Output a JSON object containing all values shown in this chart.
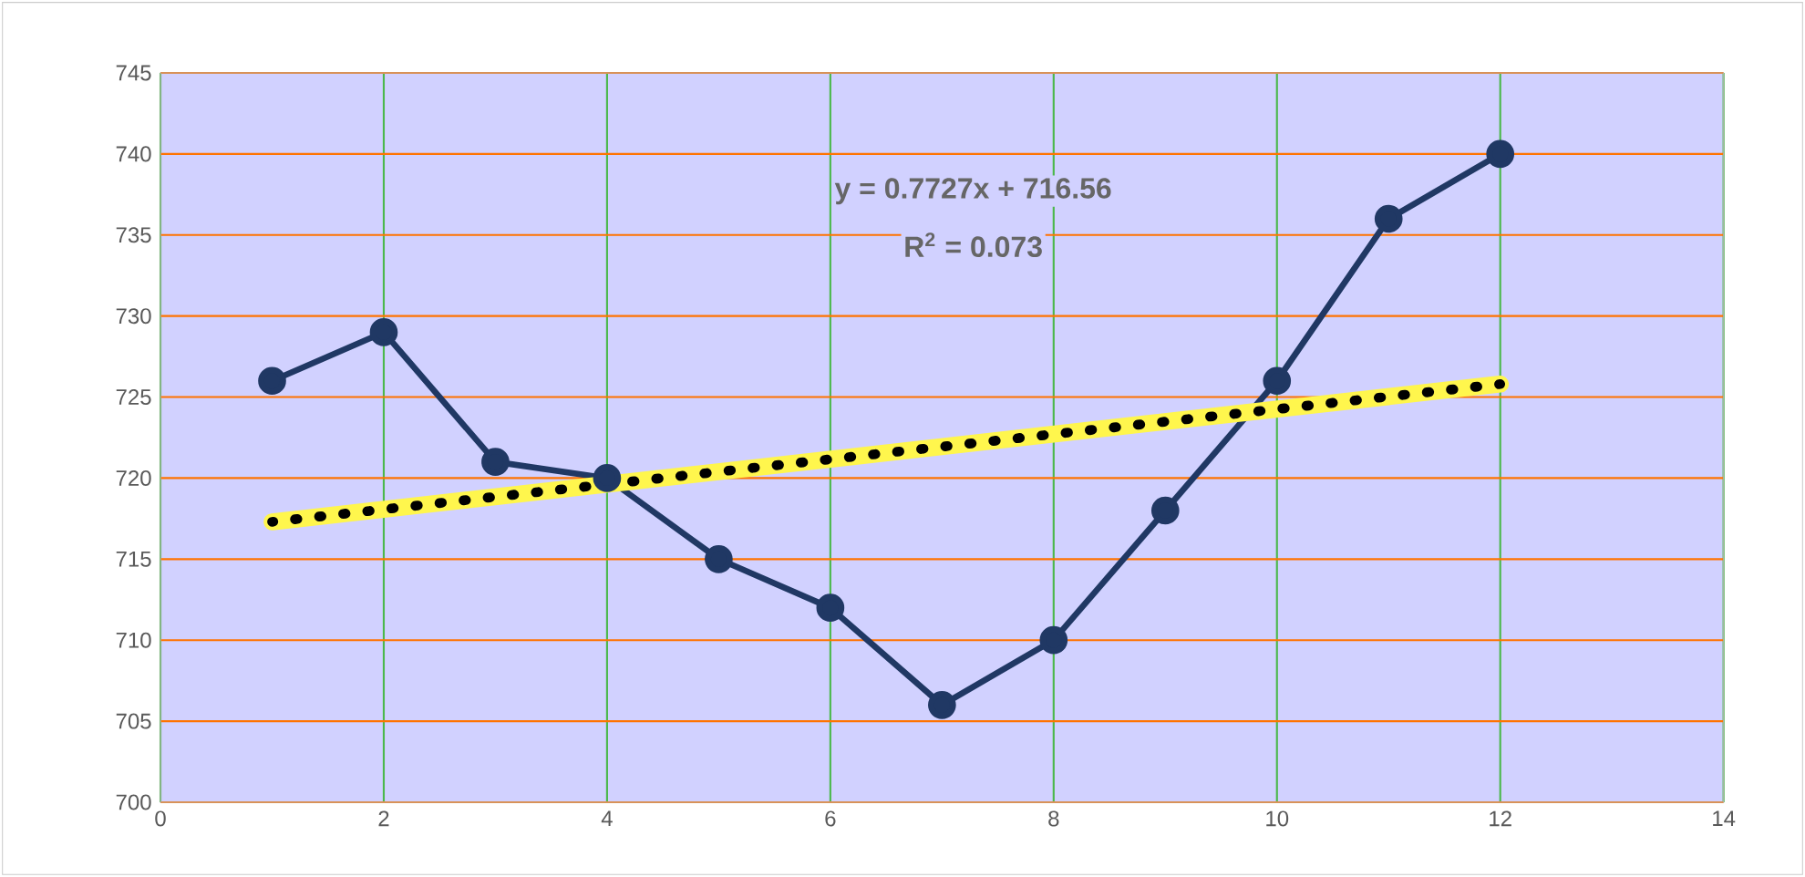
{
  "chart_data": {
    "type": "line",
    "x": [
      1,
      2,
      3,
      4,
      5,
      6,
      7,
      8,
      9,
      10,
      11,
      12
    ],
    "series": [
      {
        "color": "#203864",
        "values": [
          726,
          729,
          721,
          720,
          715,
          712,
          706,
          710,
          718,
          726,
          736,
          740
        ],
        "marker": "circle"
      },
      {
        "type": "line",
        "x": [
          1,
          12
        ],
        "color": "#000000",
        "values": [
          717.3,
          725.8
        ],
        "line_style": "dotted",
        "marker": "none"
      }
    ],
    "xlim": [
      0,
      14
    ],
    "xticks": [
      0,
      2,
      4,
      6,
      8,
      10,
      12,
      14
    ],
    "ylim": [
      700,
      745
    ],
    "yticks": [
      700,
      705,
      710,
      715,
      720,
      725,
      730,
      735,
      740,
      745
    ],
    "grid": true,
    "annotations": [
      "y = 0.7727x + 716.56",
      "R$^{2}$ = 0.073"
    ]
  }
}
